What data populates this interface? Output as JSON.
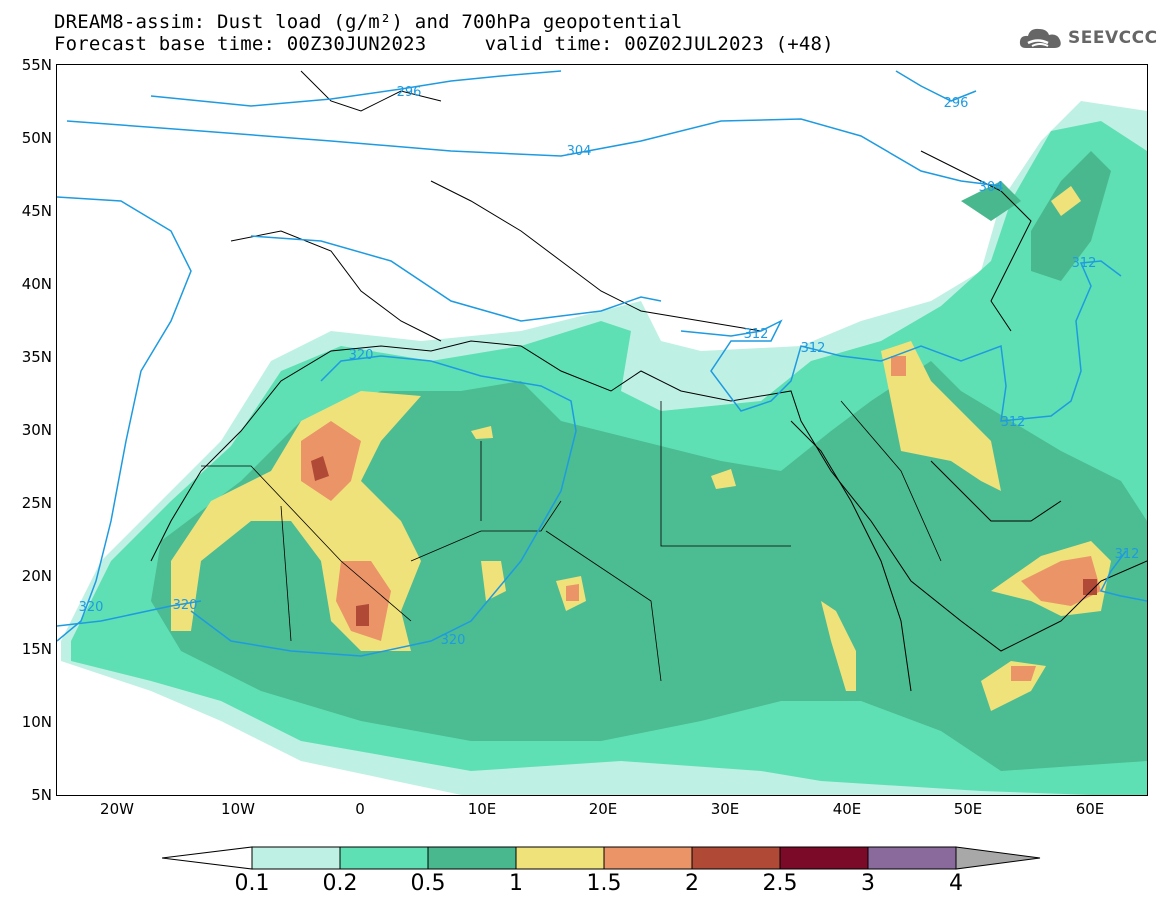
{
  "header": {
    "title_line1": "DREAM8-assim: Dust load (g/m²) and 700hPa geopotential",
    "title_line2": "Forecast base time: 00Z30JUN2023     valid time: 00Z02JUL2023 (+48)"
  },
  "logo": {
    "text": "SEEVCCC",
    "icon": "cloud-icon"
  },
  "axes": {
    "lat_labels": [
      "55N",
      "50N",
      "45N",
      "40N",
      "35N",
      "30N",
      "25N",
      "20N",
      "15N",
      "10N",
      "5N"
    ],
    "lon_labels": [
      "20W",
      "10W",
      "0",
      "10E",
      "20E",
      "30E",
      "40E",
      "50E",
      "60E"
    ]
  },
  "contours": {
    "labels": [
      "296",
      "304",
      "312",
      "320",
      "296",
      "304",
      "312",
      "312",
      "312",
      "312",
      "320",
      "320",
      "320",
      "312"
    ]
  },
  "colorbar": {
    "labels": [
      "0.1",
      "0.2",
      "0.5",
      "1",
      "1.5",
      "2",
      "2.5",
      "3",
      "4"
    ],
    "colors": [
      "#ffffff",
      "#bff0e4",
      "#5ee0b4",
      "#4ab88e",
      "#f0e27a",
      "#ea9468",
      "#b04a36",
      "#7a0a28",
      "#8a6a9c",
      "#a8a8a8"
    ]
  },
  "legend_colors": {
    "level1": "#bff0e4",
    "level2": "#5ee0b4",
    "level3": "#4ab88e",
    "level4": "#f0e27a",
    "level5": "#ea9468",
    "level6": "#b04a36",
    "contour": "#1e9be0"
  }
}
